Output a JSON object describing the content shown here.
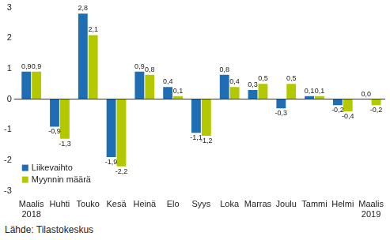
{
  "chart_data": {
    "type": "bar",
    "categories": [
      [
        "Maalis",
        "2018"
      ],
      "Huhti",
      "Touko",
      "Kesä",
      "Heinä",
      "Elo",
      "Syys",
      "Loka",
      "Marras",
      "Joulu",
      "Tammi",
      "Helmi",
      [
        "Maalis",
        "2019"
      ]
    ],
    "series": [
      {
        "name": "Liikevaihto",
        "color": "#1f6db3",
        "values": [
          0.9,
          -0.9,
          2.8,
          -1.9,
          0.9,
          0.4,
          -1.1,
          0.8,
          0.3,
          -0.3,
          0.1,
          -0.2,
          0.0
        ],
        "value_labels": [
          "0,9",
          "-0,9",
          "2,8",
          "-1,9",
          "0,9",
          "0,4",
          "-1,1",
          "0,8",
          "0,3",
          "-0,3",
          "0,1",
          "-0,2",
          "0,0"
        ]
      },
      {
        "name": "Myynnin määrä",
        "color": "#b4c800",
        "values": [
          0.9,
          -1.3,
          2.1,
          -2.2,
          0.8,
          0.1,
          -1.2,
          0.4,
          0.5,
          0.5,
          0.1,
          -0.4,
          -0.2
        ],
        "value_labels": [
          "0,9",
          "-1,3",
          "2,1",
          "-2,2",
          "0,8",
          "0,1",
          "-1,2",
          "0,4",
          "0,5",
          "0,5",
          "0,1",
          "-0,4",
          "-0,2"
        ]
      }
    ],
    "ylim": [
      -3,
      3
    ],
    "yticks": [
      -3,
      -2,
      -1,
      0,
      1,
      2,
      3
    ],
    "grid": false,
    "legend": "lower left",
    "data_labels": true,
    "annotations": [
      "Lähde: Tilastokeskus"
    ]
  }
}
